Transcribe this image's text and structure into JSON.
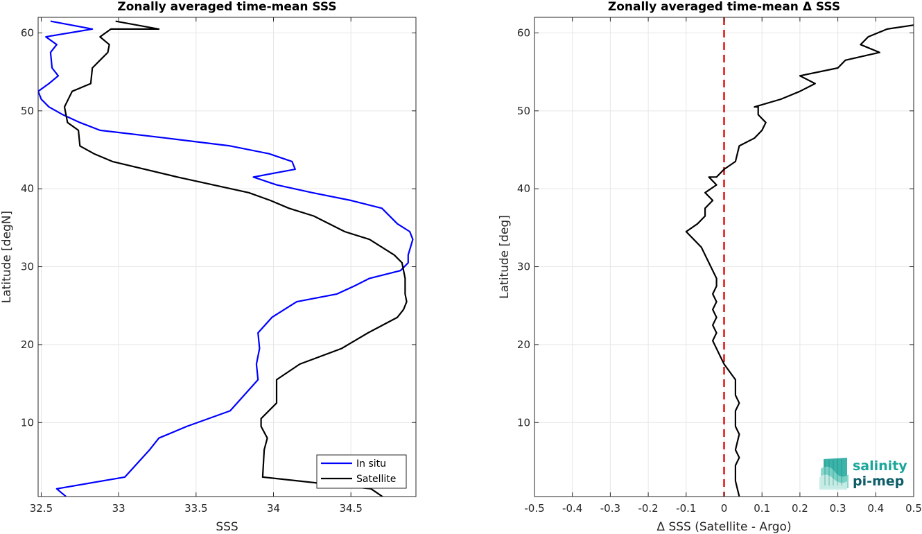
{
  "chart_data": [
    {
      "type": "line",
      "title": "Zonally averaged time-mean SSS",
      "xlabel": "SSS",
      "ylabel": "Latitude [degN]",
      "xlim": [
        32.48,
        34.92
      ],
      "ylim": [
        0.5,
        62
      ],
      "xticks": [
        32.5,
        33,
        33.5,
        34,
        34.5
      ],
      "xtick_labels": [
        "32.5",
        "33",
        "33.5",
        "34",
        "34.5"
      ],
      "yticks": [
        10,
        20,
        30,
        40,
        50,
        60
      ],
      "ytick_labels": [
        "10",
        "20",
        "30",
        "40",
        "50",
        "60"
      ],
      "grid": true,
      "legend": "bottom-right",
      "series": [
        {
          "name": "In situ",
          "color": "#0000ff",
          "x": [
            32.66,
            32.6,
            33.04,
            33.2,
            33.26,
            33.44,
            33.72,
            33.9,
            33.89,
            33.91,
            33.9,
            33.99,
            34.15,
            34.41,
            34.52,
            34.62,
            34.82,
            34.87,
            34.87,
            34.9,
            34.88,
            34.8,
            34.7,
            34.5,
            34.25,
            34.02,
            33.87,
            34.14,
            34.12,
            33.97,
            33.72,
            33.31,
            32.88,
            32.75,
            32.64,
            32.55,
            32.5,
            32.48,
            32.55,
            32.61,
            32.57,
            32.56,
            32.6,
            32.53,
            32.83,
            32.56
          ],
          "y": [
            0.5,
            1.5,
            3.0,
            6.5,
            8.0,
            9.5,
            11.5,
            15.5,
            17.5,
            19.5,
            21.5,
            23.5,
            25.5,
            26.5,
            27.5,
            28.5,
            29.5,
            30.5,
            31.5,
            33.5,
            34.5,
            35.5,
            37.5,
            38.5,
            39.5,
            40.5,
            41.5,
            42.5,
            43.5,
            44.5,
            45.5,
            46.5,
            47.5,
            48.5,
            49.5,
            50.5,
            51.5,
            52.5,
            53.5,
            54.5,
            55.5,
            57.5,
            58.5,
            59.5,
            60.5,
            61.5
          ]
        },
        {
          "name": "Satellite",
          "color": "#000000",
          "x": [
            34.74,
            34.63,
            33.93,
            33.94,
            33.96,
            33.92,
            33.92,
            34.02,
            34.02,
            34.17,
            34.44,
            34.61,
            34.8,
            34.84,
            34.86,
            34.85,
            34.85,
            34.83,
            34.78,
            34.62,
            34.46,
            34.26,
            34.1,
            33.98,
            33.84,
            33.38,
            32.96,
            32.84,
            32.75,
            32.74,
            32.67,
            32.65,
            32.7,
            32.82,
            32.83,
            32.88,
            32.93,
            32.94,
            32.88,
            32.95,
            32.96,
            33.26,
            32.98
          ],
          "y": [
            0.0,
            1.5,
            3.0,
            6.5,
            8.0,
            9.5,
            10.5,
            12.5,
            15.5,
            17.5,
            19.5,
            21.5,
            23.5,
            24.5,
            25.5,
            26.5,
            28.5,
            30.5,
            31.5,
            33.5,
            34.5,
            36.5,
            37.5,
            38.5,
            39.5,
            41.5,
            43.5,
            44.5,
            45.5,
            47.5,
            48.5,
            50.5,
            52.5,
            53.5,
            55.5,
            56.5,
            57.5,
            58.5,
            59.5,
            60.5,
            60.5,
            60.5,
            61.5
          ]
        }
      ]
    },
    {
      "type": "line",
      "title": "Zonally averaged time-mean Δ SSS",
      "xlabel": "Δ SSS (Satellite - Argo)",
      "ylabel": "Latitude [deg]",
      "xlim": [
        -0.5,
        0.5
      ],
      "ylim": [
        0.5,
        62
      ],
      "xticks": [
        -0.5,
        -0.4,
        -0.3,
        -0.2,
        -0.1,
        0,
        0.1,
        0.2,
        0.3,
        0.4,
        0.5
      ],
      "xtick_labels": [
        "-0.5",
        "-0.4",
        "-0.3",
        "-0.2",
        "-0.1",
        "0",
        "0.1",
        "0.2",
        "0.3",
        "0.4",
        "0.5"
      ],
      "yticks": [
        10,
        20,
        30,
        40,
        50,
        60
      ],
      "ytick_labels": [
        "10",
        "20",
        "30",
        "40",
        "50",
        "60"
      ],
      "grid": true,
      "reference_line": {
        "x": 0,
        "color": "#e31a1c",
        "style": "dashed"
      },
      "series": [
        {
          "color": "#000000",
          "x": [
            0.04,
            0.03,
            0.03,
            0.04,
            0.03,
            0.04,
            0.03,
            0.03,
            0.04,
            0.03,
            0.03,
            0.03,
            0.0,
            -0.01,
            -0.03,
            -0.02,
            -0.03,
            -0.02,
            -0.03,
            -0.02,
            -0.03,
            -0.02,
            -0.02,
            -0.04,
            -0.06,
            -0.08,
            -0.1,
            -0.07,
            -0.05,
            -0.05,
            -0.03,
            -0.05,
            -0.02,
            -0.04,
            -0.02,
            0.0,
            0.03,
            0.04,
            0.08,
            0.1,
            0.11,
            0.09,
            0.09,
            0.08,
            0.15,
            0.2,
            0.24,
            0.2,
            0.3,
            0.32,
            0.41,
            0.36,
            0.38,
            0.43,
            0.5
          ],
          "y": [
            0.5,
            2.5,
            4.5,
            5.5,
            6.5,
            8.5,
            9.5,
            11.5,
            12.5,
            13.5,
            14.5,
            15.5,
            17.5,
            18.5,
            20.5,
            21.5,
            22.5,
            23.5,
            24.5,
            25.5,
            26.5,
            27.5,
            28.5,
            30.5,
            32.5,
            33.5,
            34.5,
            35.5,
            36.5,
            37.5,
            38.5,
            39.5,
            40.5,
            41.5,
            41.5,
            42.5,
            43.5,
            45.5,
            46.5,
            47.5,
            48.5,
            49.5,
            50.5,
            50.5,
            51.5,
            52.5,
            53.5,
            54.5,
            55.5,
            56.5,
            57.5,
            58.5,
            59.5,
            60.5,
            61.0
          ]
        }
      ]
    }
  ],
  "legend": {
    "items": [
      {
        "label": "In situ",
        "color": "#0000ff"
      },
      {
        "label": "Satellite",
        "color": "#000000"
      }
    ]
  },
  "logo": {
    "line1": "salinity",
    "line2": "pi-mep",
    "color1": "#1aa69a",
    "color2": "#0d5d67"
  }
}
